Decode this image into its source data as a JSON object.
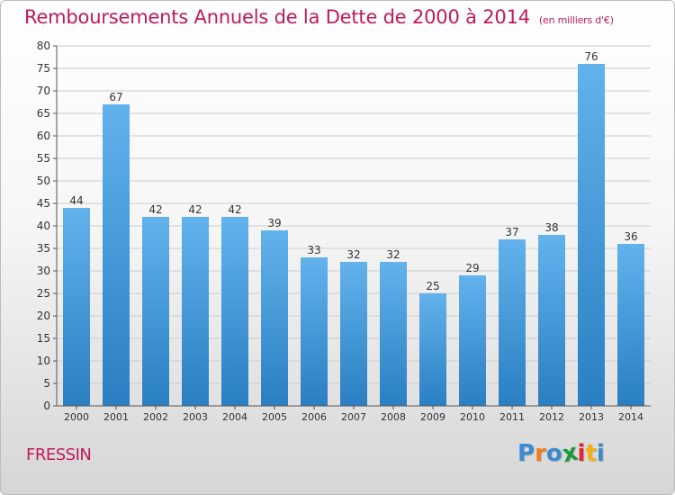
{
  "header": {
    "title": "Remboursements Annuels de la Dette de 2000 à 2014",
    "unit": "(en milliers d'€)"
  },
  "footer": {
    "commune": "FRESSIN",
    "logo_letters": [
      "P",
      "r",
      "o",
      "x",
      "i",
      "t",
      "i"
    ],
    "logo_colors": [
      "#3b8bd0",
      "#ee7d1d",
      "#3b8bd0",
      "#1a9a3a",
      "#e3262b",
      "#f2b215",
      "#3b8bd0"
    ]
  },
  "colors": {
    "bar_top": "#62b2ec",
    "bar_bottom": "#2a7fc2",
    "axis": "#555555",
    "grid": "#cccccc"
  },
  "chart_data": {
    "type": "bar",
    "categories": [
      "2000",
      "2001",
      "2002",
      "2003",
      "2004",
      "2005",
      "2006",
      "2007",
      "2008",
      "2009",
      "2010",
      "2011",
      "2012",
      "2013",
      "2014"
    ],
    "values": [
      44,
      67,
      42,
      42,
      42,
      39,
      33,
      32,
      32,
      25,
      29,
      37,
      38,
      76,
      36
    ],
    "ylim": [
      0,
      80
    ],
    "yticks": [
      0,
      5,
      10,
      15,
      20,
      25,
      30,
      35,
      40,
      45,
      50,
      55,
      60,
      65,
      70,
      75,
      80
    ],
    "grid": true,
    "data_labels": true
  }
}
